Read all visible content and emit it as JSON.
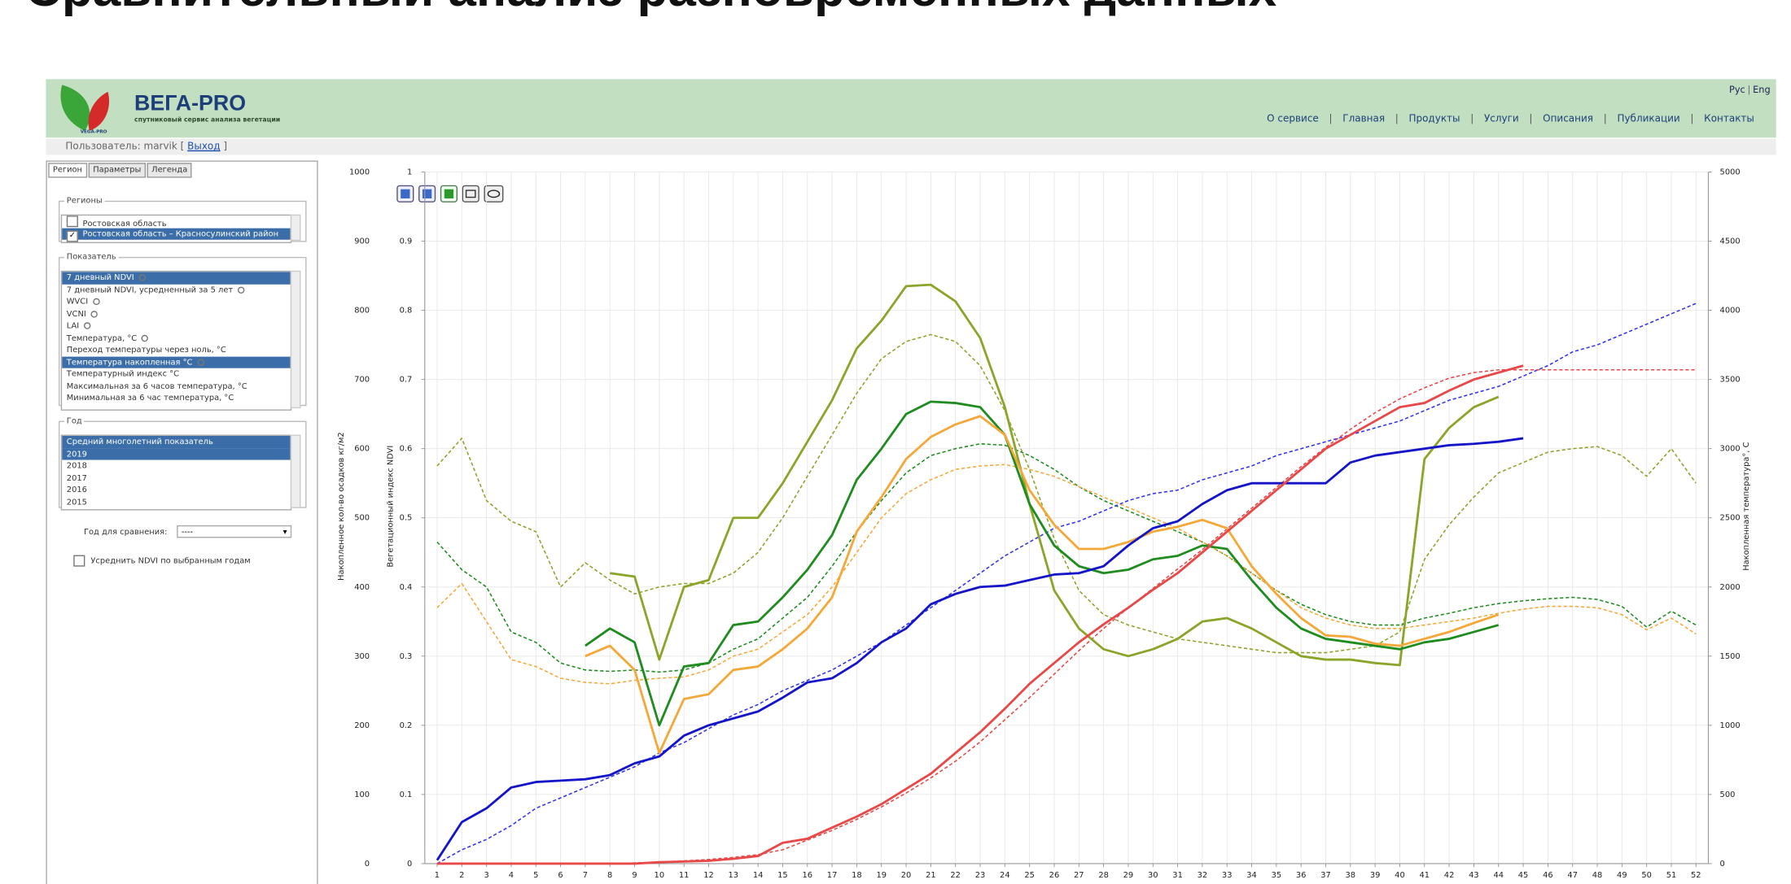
{
  "page_title": "Сравнительный анализ разновременных данных",
  "header": {
    "logo_small": "VEGA-PRO",
    "brand": "ВЕГА-PRO",
    "tagline": "спутниковый сервис анализа вегетации",
    "languages": [
      "Рус",
      "Eng"
    ],
    "nav": [
      "О сервисе",
      "Главная",
      "Продукты",
      "Услуги",
      "Описания",
      "Публикации",
      "Контакты"
    ]
  },
  "user_bar": {
    "label": "Пользователь: marvik [",
    "logout": "Выход",
    "close": "]"
  },
  "sidebar": {
    "tabs": [
      "Регион",
      "Параметры",
      "Легенда"
    ],
    "regions": {
      "title": "Регионы",
      "items": [
        {
          "label": "Ростовская область",
          "checked": false,
          "selected": false
        },
        {
          "label": "Ростовская область – Красносулинский район",
          "checked": true,
          "selected": true
        }
      ]
    },
    "indicators": {
      "title": "Показатель",
      "items": [
        {
          "label": "7 дневный NDVI",
          "selected": true,
          "icon": true
        },
        {
          "label": "7 дневный NDVI, усредненный за 5 лет",
          "selected": false,
          "icon": true
        },
        {
          "label": "WVCI",
          "selected": false,
          "icon": true
        },
        {
          "label": "VCNI",
          "selected": false,
          "icon": true
        },
        {
          "label": "LAI",
          "selected": false,
          "icon": true
        },
        {
          "label": "Температура, °С",
          "selected": false,
          "icon": true
        },
        {
          "label": "Переход температуры через ноль, °С",
          "selected": false,
          "icon": false
        },
        {
          "label": "Температура накопленная °С",
          "selected": true,
          "icon": true
        },
        {
          "label": "Температурный индекс °С",
          "selected": false,
          "icon": false
        },
        {
          "label": "Максимальная за 6 часов температура, °С",
          "selected": false,
          "icon": false
        },
        {
          "label": "Минимальная за 6 час температура, °С",
          "selected": false,
          "icon": false
        }
      ]
    },
    "years": {
      "title": "Год",
      "items": [
        {
          "label": "Средний многолетний показатель",
          "selected": true
        },
        {
          "label": "2019",
          "selected": true
        },
        {
          "label": "2018",
          "selected": false
        },
        {
          "label": "2017",
          "selected": false
        },
        {
          "label": "2016",
          "selected": false
        },
        {
          "label": "2015",
          "selected": false
        }
      ]
    },
    "compare_label": "Год для сравнения:",
    "compare_value": "----",
    "average_label": "Усреднить NDVI по выбранным годам"
  },
  "chart_data": {
    "type": "line",
    "ylabel": "Накопленное кол-во осадков кг/м2",
    "y3label": "Вегетационный индекс NDVI",
    "y2label": "Накопленная температура°, С",
    "categories": [
      1,
      2,
      3,
      4,
      5,
      6,
      7,
      8,
      9,
      10,
      11,
      12,
      13,
      14,
      15,
      16,
      17,
      18,
      19,
      20,
      21,
      22,
      23,
      24,
      25,
      26,
      27,
      28,
      29,
      30,
      31,
      32,
      33,
      34,
      35,
      36,
      37,
      38,
      39,
      40,
      41,
      42,
      43,
      44,
      45,
      46,
      47,
      48,
      49,
      50,
      51,
      52
    ],
    "ylim": [
      0,
      1000
    ],
    "yticks": [
      0,
      100,
      200,
      300,
      400,
      500,
      600,
      700,
      800,
      900,
      1000
    ],
    "y3lim": [
      0,
      1
    ],
    "y3ticks": [
      0,
      0.1,
      0.2,
      0.3,
      0.4,
      0.5,
      0.6,
      0.7,
      0.8,
      0.9,
      1
    ],
    "y2lim": [
      0,
      5000
    ],
    "y2ticks": [
      0,
      500,
      1000,
      1500,
      2000,
      2500,
      3000,
      3500,
      4000,
      4500,
      5000
    ],
    "grid": true,
    "series": [
      {
        "color": "#8aa52a",
        "dash": true,
        "axis": "y3",
        "values": [
          0.575,
          0.615,
          0.525,
          0.495,
          0.48,
          0.4,
          0.435,
          0.41,
          0.39,
          0.4,
          0.405,
          0.405,
          0.42,
          0.45,
          0.5,
          0.56,
          0.62,
          0.68,
          0.73,
          0.755,
          0.765,
          0.755,
          0.72,
          0.655,
          0.57,
          0.47,
          0.395,
          0.36,
          0.345,
          0.335,
          0.325,
          0.32,
          0.315,
          0.31,
          0.305,
          0.305,
          0.305,
          0.31,
          0.315,
          0.335,
          0.44,
          0.49,
          0.53,
          0.565,
          0.58,
          0.595,
          0.6,
          0.603,
          0.59,
          0.56,
          0.6,
          0.55
        ]
      },
      {
        "color": "#1f8c1f",
        "dash": true,
        "axis": "y3",
        "values": [
          0.465,
          0.425,
          0.4,
          0.335,
          0.32,
          0.29,
          0.28,
          0.278,
          0.28,
          0.277,
          0.28,
          0.29,
          0.31,
          0.325,
          0.355,
          0.385,
          0.43,
          0.48,
          0.525,
          0.565,
          0.59,
          0.6,
          0.607,
          0.605,
          0.59,
          0.57,
          0.545,
          0.525,
          0.51,
          0.495,
          0.48,
          0.465,
          0.445,
          0.42,
          0.395,
          0.375,
          0.36,
          0.35,
          0.345,
          0.345,
          0.355,
          0.362,
          0.37,
          0.376,
          0.38,
          0.383,
          0.385,
          0.382,
          0.372,
          0.342,
          0.365,
          0.345
        ]
      },
      {
        "color": "#f5a83a",
        "dash": true,
        "axis": "y3",
        "values": [
          0.37,
          0.405,
          0.35,
          0.295,
          0.285,
          0.268,
          0.262,
          0.26,
          0.265,
          0.268,
          0.27,
          0.28,
          0.3,
          0.31,
          0.335,
          0.36,
          0.4,
          0.45,
          0.5,
          0.535,
          0.555,
          0.57,
          0.575,
          0.577,
          0.57,
          0.56,
          0.545,
          0.53,
          0.515,
          0.5,
          0.485,
          0.465,
          0.445,
          0.42,
          0.395,
          0.37,
          0.355,
          0.345,
          0.34,
          0.34,
          0.345,
          0.35,
          0.355,
          0.362,
          0.368,
          0.372,
          0.372,
          0.37,
          0.36,
          0.338,
          0.355,
          0.332
        ]
      },
      {
        "color": "#3333ee",
        "dash": true,
        "axis": "y",
        "values": [
          0,
          20,
          35,
          55,
          80,
          95,
          110,
          125,
          140,
          160,
          175,
          195,
          215,
          230,
          250,
          265,
          280,
          300,
          320,
          345,
          370,
          395,
          420,
          445,
          465,
          485,
          495,
          510,
          525,
          535,
          540,
          555,
          565,
          575,
          590,
          600,
          610,
          620,
          630,
          640,
          655,
          670,
          680,
          690,
          705,
          720,
          740,
          750,
          765,
          780,
          795,
          810
        ]
      },
      {
        "color": "#e84848",
        "dash": true,
        "axis": "y2",
        "values": [
          0,
          0,
          0,
          0,
          0,
          0,
          0,
          0,
          5,
          10,
          20,
          30,
          45,
          65,
          100,
          170,
          240,
          320,
          410,
          510,
          620,
          740,
          880,
          1040,
          1200,
          1370,
          1540,
          1700,
          1850,
          1990,
          2130,
          2270,
          2420,
          2570,
          2720,
          2870,
          3010,
          3140,
          3260,
          3360,
          3440,
          3510,
          3550,
          3570,
          3570,
          3570,
          3570,
          3570,
          3570,
          3570,
          3570,
          3570
        ]
      },
      {
        "color": "#8aa52a",
        "dash": false,
        "axis": "y3",
        "values": [
          null,
          null,
          null,
          null,
          null,
          null,
          null,
          0.42,
          0.415,
          0.295,
          0.4,
          0.41,
          0.5,
          0.5,
          0.55,
          0.61,
          0.67,
          0.745,
          0.785,
          0.835,
          0.837,
          0.813,
          0.76,
          0.66,
          0.52,
          0.395,
          0.34,
          0.31,
          0.3,
          0.31,
          0.325,
          0.35,
          0.355,
          0.34,
          0.32,
          0.3,
          0.295,
          0.295,
          0.29,
          0.287,
          0.585,
          0.63,
          0.66,
          0.675,
          null,
          null,
          null,
          null,
          null,
          null,
          null,
          null
        ]
      },
      {
        "color": "#1f8c1f",
        "dash": false,
        "axis": "y3",
        "values": [
          null,
          null,
          null,
          null,
          null,
          null,
          0.315,
          0.34,
          0.32,
          0.2,
          0.285,
          0.29,
          0.345,
          0.35,
          0.385,
          0.425,
          0.475,
          0.555,
          0.6,
          0.65,
          0.668,
          0.666,
          0.66,
          0.62,
          0.52,
          0.46,
          0.43,
          0.42,
          0.425,
          0.44,
          0.445,
          0.46,
          0.455,
          0.41,
          0.37,
          0.34,
          0.325,
          0.32,
          0.315,
          0.31,
          0.32,
          0.325,
          0.335,
          0.345,
          null,
          null,
          null,
          null,
          null,
          null,
          null,
          null
        ]
      },
      {
        "color": "#f5a83a",
        "dash": false,
        "axis": "y3",
        "values": [
          null,
          null,
          null,
          null,
          null,
          null,
          0.3,
          0.315,
          0.28,
          0.16,
          0.238,
          0.245,
          0.28,
          0.285,
          0.31,
          0.34,
          0.385,
          0.48,
          0.53,
          0.585,
          0.617,
          0.635,
          0.647,
          0.62,
          0.54,
          0.49,
          0.455,
          0.455,
          0.465,
          0.48,
          0.487,
          0.497,
          0.485,
          0.43,
          0.39,
          0.355,
          0.33,
          0.328,
          0.318,
          0.315,
          0.325,
          0.335,
          0.348,
          0.36,
          null,
          null,
          null,
          null,
          null,
          null,
          null,
          null
        ]
      },
      {
        "color": "#1414c8",
        "dash": false,
        "axis": "y",
        "values": [
          5,
          60,
          80,
          110,
          118,
          120,
          122,
          128,
          145,
          155,
          185,
          200,
          210,
          220,
          240,
          262,
          268,
          290,
          320,
          340,
          375,
          390,
          400,
          402,
          410,
          418,
          420,
          430,
          460,
          485,
          495,
          520,
          540,
          550,
          550,
          550,
          550,
          580,
          590,
          595,
          600,
          605,
          607,
          610,
          615,
          null,
          null,
          null,
          null,
          null,
          null,
          null
        ]
      },
      {
        "color": "#e84848",
        "dash": false,
        "axis": "y2",
        "values": [
          0,
          0,
          0,
          0,
          0,
          0,
          0,
          0,
          0,
          10,
          15,
          20,
          35,
          55,
          150,
          180,
          260,
          340,
          430,
          540,
          650,
          800,
          950,
          1120,
          1300,
          1450,
          1600,
          1730,
          1850,
          1980,
          2100,
          2250,
          2400,
          2550,
          2700,
          2850,
          3000,
          3100,
          3200,
          3300,
          3330,
          3420,
          3500,
          3550,
          3600,
          null,
          null,
          null,
          null,
          null,
          null,
          null
        ]
      }
    ]
  }
}
